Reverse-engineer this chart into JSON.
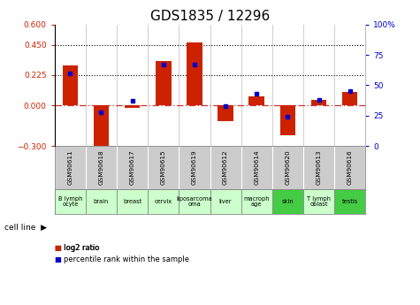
{
  "title": "GDS1835 / 12296",
  "samples": [
    "GSM90611",
    "GSM90618",
    "GSM90617",
    "GSM90615",
    "GSM90619",
    "GSM90612",
    "GSM90614",
    "GSM90620",
    "GSM90613",
    "GSM90616"
  ],
  "cell_lines": [
    "B lymph\nocyte",
    "brain",
    "breast",
    "cervix",
    "liposarcoma\n(liposarcoma)",
    "liver",
    "macrophage",
    "skin",
    "T lymph\noblast",
    "testis"
  ],
  "cell_line_texts": [
    "B lymph\nocyte",
    "brain",
    "breast",
    "cervix",
    "liposarcoma\noma",
    "liver",
    "macroph\nage",
    "skin",
    "T lymph\noblast",
    "testis"
  ],
  "cell_line_short": [
    "liposarcoma",
    "liver"
  ],
  "cell_bg_colors": [
    "#ccffcc",
    "#ccffcc",
    "#ccffcc",
    "#ccffcc",
    "#ccffcc",
    "#ccffcc",
    "#ccffcc",
    "#33cc33",
    "#ccffcc",
    "#33cc33"
  ],
  "log2_ratio": [
    0.295,
    -0.32,
    -0.02,
    0.33,
    0.465,
    -0.115,
    0.065,
    -0.22,
    0.04,
    0.1
  ],
  "percentile_rank": [
    60,
    28,
    37,
    67,
    67,
    33,
    43,
    24,
    38,
    45
  ],
  "ylim_left": [
    -0.3,
    0.6
  ],
  "ylim_right": [
    0,
    100
  ],
  "left_ticks": [
    -0.3,
    0,
    0.225,
    0.45,
    0.6
  ],
  "right_ticks": [
    0,
    25,
    50,
    75,
    100
  ],
  "right_tick_labels": [
    "0",
    "25",
    "50",
    "75",
    "100%"
  ],
  "hline_values": [
    0.225,
    0.45
  ],
  "bar_color": "#cc2200",
  "dot_color": "#0000cc",
  "zero_line_color": "#cc3333",
  "hline_color": "#000000",
  "gsm_bg": "#cccccc",
  "title_fontsize": 11,
  "bar_width": 0.5
}
